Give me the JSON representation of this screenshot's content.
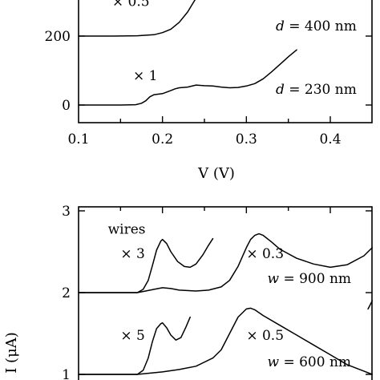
{
  "chart_data": [
    {
      "type": "line",
      "title": "",
      "xlabel": "V (V)",
      "ylabel": "",
      "xlim": [
        0.1,
        0.45
      ],
      "ylim": [
        -30,
        310
      ],
      "x_ticks": [
        "0.1",
        "0.2",
        "0.3",
        "0.4"
      ],
      "x_tick_values": [
        0.1,
        0.2,
        0.3,
        0.4
      ],
      "y_ticks": [
        "0",
        "200"
      ],
      "y_tick_values": [
        0,
        200
      ],
      "annotations": [
        {
          "text": "× 0.5",
          "x": 0.14,
          "y": 287
        },
        {
          "text": "× 1",
          "x": 0.165,
          "y": 72
        },
        {
          "text": "d = 400 nm",
          "x": 0.335,
          "y": 216
        },
        {
          "text": "d = 230 nm",
          "x": 0.335,
          "y": 32
        }
      ],
      "series": [
        {
          "points": [
            [
              0.1,
              200
            ],
            [
              0.14,
              200
            ],
            [
              0.17,
              201
            ],
            [
              0.19,
              204
            ],
            [
              0.2,
              210
            ],
            [
              0.21,
              220
            ],
            [
              0.22,
              240
            ],
            [
              0.23,
              270
            ],
            [
              0.24,
              310
            ]
          ]
        },
        {
          "points": [
            [
              0.1,
              0
            ],
            [
              0.15,
              0
            ],
            [
              0.168,
              1
            ],
            [
              0.175,
              5
            ],
            [
              0.18,
              12
            ],
            [
              0.185,
              24
            ],
            [
              0.19,
              30
            ],
            [
              0.2,
              33
            ],
            [
              0.21,
              42
            ],
            [
              0.215,
              47
            ],
            [
              0.22,
              50
            ],
            [
              0.23,
              52
            ],
            [
              0.24,
              58
            ],
            [
              0.25,
              56
            ],
            [
              0.26,
              55
            ],
            [
              0.27,
              52
            ],
            [
              0.28,
              50
            ],
            [
              0.29,
              51
            ],
            [
              0.3,
              55
            ],
            [
              0.31,
              62
            ],
            [
              0.32,
              76
            ],
            [
              0.33,
              96
            ],
            [
              0.34,
              118
            ],
            [
              0.35,
              140
            ],
            [
              0.36,
              160
            ]
          ]
        }
      ]
    },
    {
      "type": "line",
      "title": "",
      "xlabel": "",
      "ylabel": "I (μA)",
      "xlim": [
        0.1,
        0.45
      ],
      "ylim": [
        0.8,
        3.0
      ],
      "y_ticks": [
        "1",
        "2",
        "3"
      ],
      "y_tick_values": [
        1,
        2,
        3
      ],
      "annotations": [
        {
          "text": "wires",
          "x": 0.135,
          "y": 2.72
        },
        {
          "text": "× 3",
          "x": 0.15,
          "y": 2.42
        },
        {
          "text": "× 0.3",
          "x": 0.3,
          "y": 2.42
        },
        {
          "text": "w = 900 nm",
          "x": 0.325,
          "y": 2.12
        },
        {
          "text": "× 5",
          "x": 0.15,
          "y": 1.42
        },
        {
          "text": "× 0.5",
          "x": 0.3,
          "y": 1.42
        },
        {
          "text": "w = 600 nm",
          "x": 0.325,
          "y": 1.1
        }
      ],
      "series": [
        {
          "points": [
            [
              0.1,
              2
            ],
            [
              0.17,
              2
            ],
            [
              0.177,
              2.04
            ],
            [
              0.183,
              2.15
            ],
            [
              0.188,
              2.33
            ],
            [
              0.193,
              2.52
            ],
            [
              0.198,
              2.63
            ],
            [
              0.2,
              2.65
            ],
            [
              0.205,
              2.6
            ],
            [
              0.21,
              2.5
            ],
            [
              0.218,
              2.38
            ],
            [
              0.226,
              2.32
            ],
            [
              0.233,
              2.31
            ],
            [
              0.24,
              2.35
            ],
            [
              0.248,
              2.46
            ],
            [
              0.255,
              2.58
            ],
            [
              0.26,
              2.66
            ]
          ]
        },
        {
          "points": [
            [
              0.1,
              2
            ],
            [
              0.17,
              2
            ],
            [
              0.18,
              2.02
            ],
            [
              0.19,
              2.04
            ],
            [
              0.2,
              2.06
            ],
            [
              0.21,
              2.05
            ],
            [
              0.22,
              2.03
            ],
            [
              0.24,
              2.02
            ],
            [
              0.255,
              2.03
            ],
            [
              0.27,
              2.07
            ],
            [
              0.28,
              2.15
            ],
            [
              0.29,
              2.32
            ],
            [
              0.3,
              2.55
            ],
            [
              0.305,
              2.65
            ],
            [
              0.31,
              2.7
            ],
            [
              0.315,
              2.72
            ],
            [
              0.32,
              2.7
            ],
            [
              0.33,
              2.62
            ],
            [
              0.34,
              2.53
            ],
            [
              0.36,
              2.42
            ],
            [
              0.38,
              2.35
            ],
            [
              0.4,
              2.31
            ],
            [
              0.42,
              2.34
            ],
            [
              0.44,
              2.45
            ],
            [
              0.45,
              2.55
            ]
          ]
        },
        {
          "points": [
            [
              0.1,
              1
            ],
            [
              0.17,
              1
            ],
            [
              0.177,
              1.05
            ],
            [
              0.183,
              1.2
            ],
            [
              0.188,
              1.4
            ],
            [
              0.193,
              1.56
            ],
            [
              0.198,
              1.62
            ],
            [
              0.2,
              1.63
            ],
            [
              0.205,
              1.57
            ],
            [
              0.21,
              1.48
            ],
            [
              0.216,
              1.42
            ],
            [
              0.222,
              1.45
            ],
            [
              0.228,
              1.58
            ],
            [
              0.233,
              1.7
            ]
          ]
        },
        {
          "points": [
            [
              0.1,
              1
            ],
            [
              0.17,
              1
            ],
            [
              0.2,
              1.03
            ],
            [
              0.22,
              1.06
            ],
            [
              0.24,
              1.1
            ],
            [
              0.26,
              1.2
            ],
            [
              0.27,
              1.3
            ],
            [
              0.28,
              1.5
            ],
            [
              0.29,
              1.7
            ],
            [
              0.3,
              1.8
            ],
            [
              0.305,
              1.81
            ],
            [
              0.31,
              1.79
            ],
            [
              0.32,
              1.72
            ],
            [
              0.34,
              1.6
            ],
            [
              0.36,
              1.48
            ],
            [
              0.38,
              1.36
            ],
            [
              0.4,
              1.24
            ],
            [
              0.42,
              1.12
            ],
            [
              0.44,
              1.04
            ],
            [
              0.45,
              1
            ]
          ]
        },
        {
          "points": [
            [
              0.445,
              1.8
            ],
            [
              0.45,
              1.9
            ]
          ]
        }
      ]
    }
  ]
}
